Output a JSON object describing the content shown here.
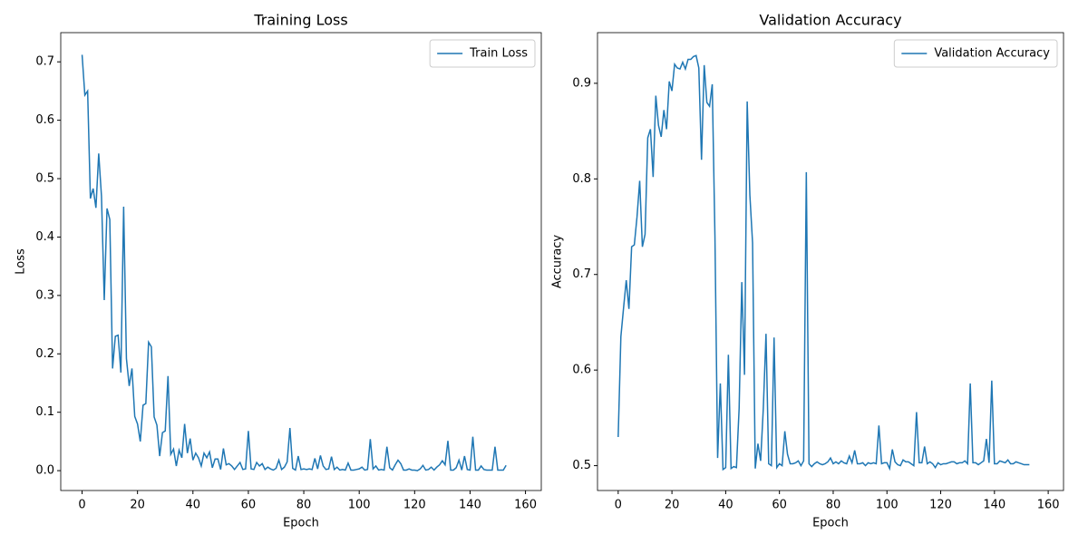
{
  "chart_data": [
    {
      "type": "line",
      "title": "Training Loss",
      "xlabel": "Epoch",
      "ylabel": "Loss",
      "x": [
        0,
        1,
        2,
        3,
        4,
        5,
        6,
        7,
        8,
        9,
        10,
        11,
        12,
        13,
        14,
        15,
        16,
        17,
        18,
        19,
        20,
        21,
        22,
        23,
        24,
        25,
        26,
        27,
        28,
        29,
        30,
        31,
        32,
        33,
        34,
        35,
        36,
        37,
        38,
        39,
        40,
        41,
        42,
        43,
        44,
        45,
        46,
        47,
        48,
        49,
        50,
        51,
        52,
        53,
        54,
        55,
        56,
        57,
        58,
        59,
        60,
        61,
        62,
        63,
        64,
        65,
        66,
        67,
        68,
        69,
        70,
        71,
        72,
        73,
        74,
        75,
        76,
        77,
        78,
        79,
        80,
        81,
        82,
        83,
        84,
        85,
        86,
        87,
        88,
        89,
        90,
        91,
        92,
        93,
        94,
        95,
        96,
        97,
        98,
        99,
        100,
        101,
        102,
        103,
        104,
        105,
        106,
        107,
        108,
        109,
        110,
        111,
        112,
        113,
        114,
        115,
        116,
        117,
        118,
        119,
        120,
        121,
        122,
        123,
        124,
        125,
        126,
        127,
        128,
        129,
        130,
        131,
        132,
        133,
        134,
        135,
        136,
        137,
        138,
        139,
        140,
        141,
        142,
        143,
        144,
        145,
        146,
        147,
        148,
        149,
        150,
        151,
        152,
        153
      ],
      "series": [
        {
          "name": "Train Loss",
          "color": "#1f77b4",
          "values": [
            0.712,
            0.643,
            0.65,
            0.466,
            0.483,
            0.45,
            0.543,
            0.47,
            0.292,
            0.449,
            0.43,
            0.175,
            0.23,
            0.232,
            0.168,
            0.452,
            0.192,
            0.145,
            0.175,
            0.093,
            0.08,
            0.05,
            0.112,
            0.115,
            0.22,
            0.212,
            0.092,
            0.078,
            0.025,
            0.065,
            0.068,
            0.162,
            0.028,
            0.037,
            0.008,
            0.035,
            0.022,
            0.08,
            0.03,
            0.055,
            0.018,
            0.03,
            0.022,
            0.008,
            0.03,
            0.022,
            0.032,
            0.005,
            0.02,
            0.02,
            0.002,
            0.038,
            0.01,
            0.012,
            0.008,
            0.002,
            0.008,
            0.014,
            0.002,
            0.003,
            0.068,
            0.003,
            0.002,
            0.014,
            0.008,
            0.012,
            0.002,
            0.006,
            0.003,
            0.001,
            0.004,
            0.018,
            0.002,
            0.006,
            0.015,
            0.073,
            0.004,
            0.001,
            0.025,
            0.002,
            0.003,
            0.002,
            0.003,
            0.002,
            0.021,
            0.003,
            0.026,
            0.008,
            0.002,
            0.003,
            0.024,
            0.002,
            0.006,
            0.001,
            0.002,
            0.001,
            0.013,
            0.001,
            0.001,
            0.002,
            0.003,
            0.006,
            0.001,
            0.002,
            0.054,
            0.003,
            0.008,
            0.001,
            0.002,
            0.001,
            0.041,
            0.005,
            0.001,
            0.01,
            0.018,
            0.012,
            0.001,
            0.001,
            0.003,
            0.001,
            0.001,
            0.0,
            0.003,
            0.009,
            0.001,
            0.002,
            0.006,
            0.001,
            0.006,
            0.01,
            0.017,
            0.01,
            0.051,
            0.001,
            0.001,
            0.005,
            0.018,
            0.001,
            0.025,
            0.002,
            0.001,
            0.058,
            0.001,
            0.001,
            0.008,
            0.002,
            0.001,
            0.001,
            0.001,
            0.041,
            0.001,
            0.001,
            0.001,
            0.009
          ]
        }
      ],
      "xlim": [
        -7.7,
        165.7
      ],
      "xticks": [
        0,
        20,
        40,
        60,
        80,
        100,
        120,
        140,
        160
      ],
      "ylim": [
        -0.034,
        0.75
      ],
      "yticks": [
        {
          "value": 0,
          "label": "0.0"
        },
        0.1,
        0.2,
        0.3,
        0.4,
        0.5,
        0.6,
        0.7
      ],
      "legend": "upper right"
    },
    {
      "type": "line",
      "title": "Validation Accuracy",
      "xlabel": "Epoch",
      "ylabel": "Accuracy",
      "x": [
        0,
        1,
        2,
        3,
        4,
        5,
        6,
        7,
        8,
        9,
        10,
        11,
        12,
        13,
        14,
        15,
        16,
        17,
        18,
        19,
        20,
        21,
        22,
        23,
        24,
        25,
        26,
        27,
        28,
        29,
        30,
        31,
        32,
        33,
        34,
        35,
        36,
        37,
        38,
        39,
        40,
        41,
        42,
        43,
        44,
        45,
        46,
        47,
        48,
        49,
        50,
        51,
        52,
        53,
        54,
        55,
        56,
        57,
        58,
        59,
        60,
        61,
        62,
        63,
        64,
        65,
        66,
        67,
        68,
        69,
        70,
        71,
        72,
        73,
        74,
        75,
        76,
        77,
        78,
        79,
        80,
        81,
        82,
        83,
        84,
        85,
        86,
        87,
        88,
        89,
        90,
        91,
        92,
        93,
        94,
        95,
        96,
        97,
        98,
        99,
        100,
        101,
        102,
        103,
        104,
        105,
        106,
        107,
        108,
        109,
        110,
        111,
        112,
        113,
        114,
        115,
        116,
        117,
        118,
        119,
        120,
        121,
        122,
        123,
        124,
        125,
        126,
        127,
        128,
        129,
        130,
        131,
        132,
        133,
        134,
        135,
        136,
        137,
        138,
        139,
        140,
        141,
        142,
        143,
        144,
        145,
        146,
        147,
        148,
        149,
        150,
        151,
        152,
        153
      ],
      "series": [
        {
          "name": "Validation Accuracy",
          "color": "#1f77b4",
          "values": [
            0.53,
            0.635,
            0.665,
            0.694,
            0.664,
            0.729,
            0.731,
            0.76,
            0.798,
            0.729,
            0.742,
            0.843,
            0.852,
            0.802,
            0.887,
            0.856,
            0.844,
            0.872,
            0.852,
            0.902,
            0.892,
            0.92,
            0.916,
            0.915,
            0.922,
            0.915,
            0.925,
            0.925,
            0.928,
            0.929,
            0.916,
            0.82,
            0.919,
            0.88,
            0.876,
            0.899,
            0.74,
            0.508,
            0.586,
            0.496,
            0.498,
            0.616,
            0.497,
            0.499,
            0.498,
            0.56,
            0.692,
            0.595,
            0.881,
            0.783,
            0.733,
            0.497,
            0.523,
            0.505,
            0.56,
            0.638,
            0.502,
            0.5,
            0.634,
            0.498,
            0.502,
            0.5,
            0.536,
            0.512,
            0.502,
            0.502,
            0.503,
            0.505,
            0.5,
            0.505,
            0.807,
            0.502,
            0.499,
            0.502,
            0.504,
            0.502,
            0.501,
            0.502,
            0.504,
            0.508,
            0.502,
            0.504,
            0.502,
            0.505,
            0.503,
            0.502,
            0.51,
            0.503,
            0.516,
            0.502,
            0.502,
            0.503,
            0.5,
            0.503,
            0.502,
            0.503,
            0.502,
            0.542,
            0.502,
            0.503,
            0.503,
            0.497,
            0.517,
            0.504,
            0.501,
            0.5,
            0.506,
            0.504,
            0.504,
            0.502,
            0.5,
            0.556,
            0.503,
            0.503,
            0.52,
            0.502,
            0.504,
            0.502,
            0.498,
            0.503,
            0.501,
            0.502,
            0.502,
            0.503,
            0.504,
            0.504,
            0.502,
            0.503,
            0.503,
            0.505,
            0.502,
            0.586,
            0.503,
            0.503,
            0.501,
            0.503,
            0.505,
            0.528,
            0.503,
            0.589,
            0.502,
            0.502,
            0.505,
            0.504,
            0.503,
            0.506,
            0.502,
            0.502,
            0.504,
            0.503,
            0.502,
            0.501,
            0.501,
            0.501
          ]
        }
      ],
      "xlim": [
        -7.7,
        165.7
      ],
      "xticks": [
        0,
        20,
        40,
        60,
        80,
        100,
        120,
        140,
        160
      ],
      "ylim": [
        0.474,
        0.953
      ],
      "yticks": [
        0.5,
        0.6,
        0.7,
        0.8,
        0.9
      ],
      "legend": "upper right"
    }
  ]
}
